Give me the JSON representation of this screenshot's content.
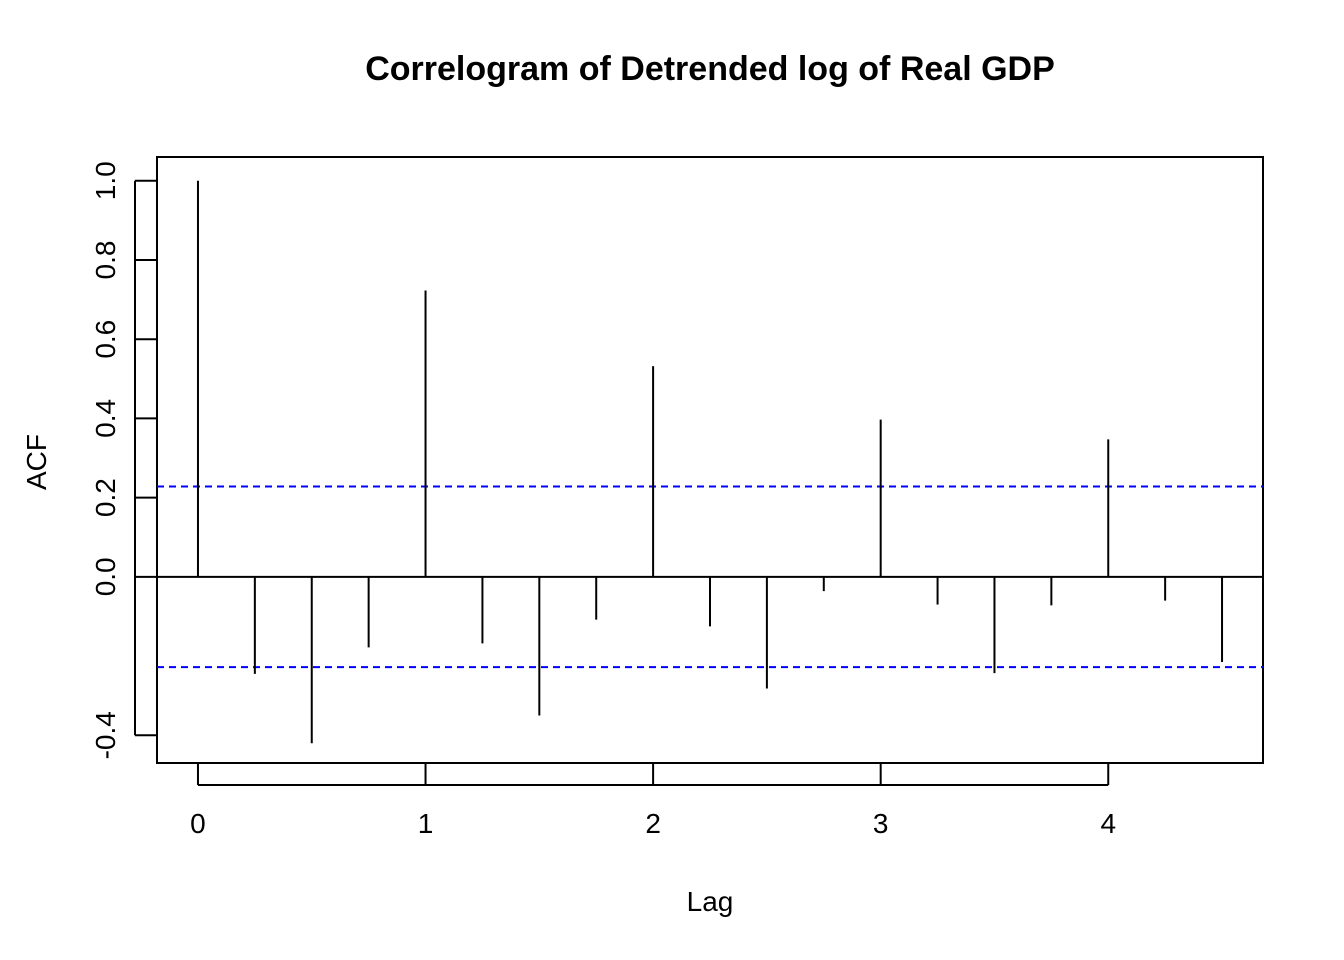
{
  "chart_data": {
    "type": "bar",
    "title": "Correlogram of Detrended log of Real GDP",
    "xlabel": "Lag",
    "ylabel": "ACF",
    "xlim": [
      -0.18,
      4.68
    ],
    "ylim": [
      -0.47,
      1.06
    ],
    "x_ticks": [
      0,
      1,
      2,
      3,
      4
    ],
    "x_tick_labels": [
      "0",
      "1",
      "2",
      "3",
      "4"
    ],
    "y_ticks": [
      -0.4,
      0.0,
      0.2,
      0.4,
      0.6,
      0.8,
      1.0
    ],
    "y_tick_labels": [
      "-0.4",
      "0.0",
      "0.2",
      "0.4",
      "0.6",
      "0.8",
      "1.0"
    ],
    "lags": [
      0,
      0.25,
      0.5,
      0.75,
      1,
      1.25,
      1.5,
      1.75,
      2,
      2.25,
      2.5,
      2.75,
      3,
      3.25,
      3.5,
      3.75,
      4,
      4.25,
      4.5
    ],
    "acf": [
      1.0,
      -0.245,
      -0.42,
      -0.178,
      0.723,
      -0.168,
      -0.35,
      -0.108,
      0.532,
      -0.125,
      -0.282,
      -0.036,
      0.397,
      -0.07,
      -0.243,
      -0.072,
      0.347,
      -0.06,
      -0.215
    ],
    "confidence_bound": 0.228,
    "zero_line_color": "#000000",
    "bound_color": "#0000ff",
    "spike_color": "#000000",
    "grid": false,
    "legend": "none"
  }
}
